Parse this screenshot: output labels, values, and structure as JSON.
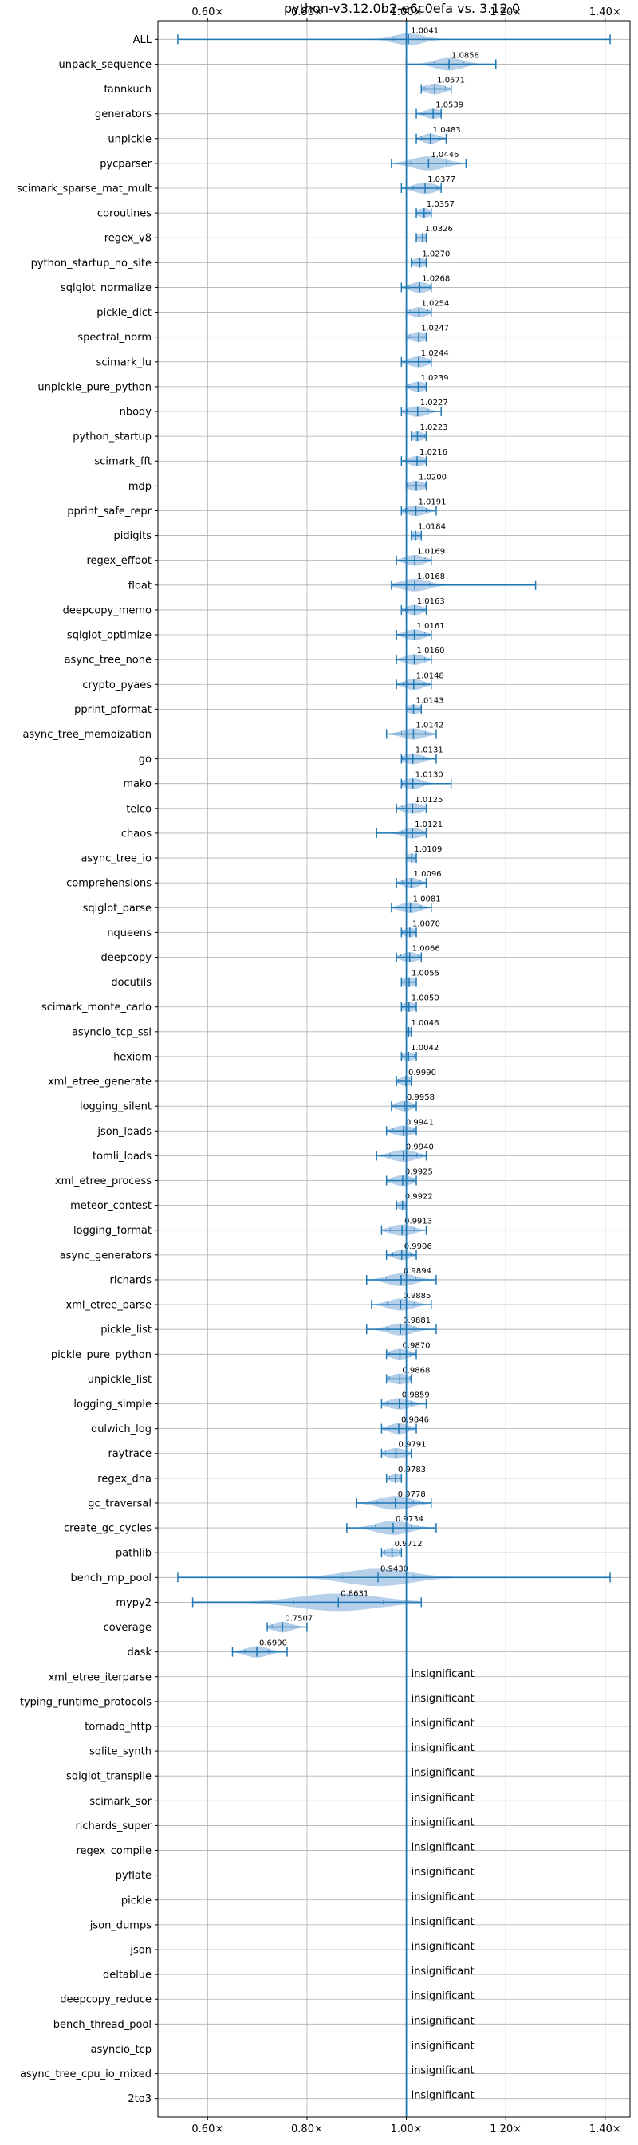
{
  "chart_data": {
    "type": "violin",
    "title": "python-v3.12.0b2-e6c0efa vs. 3.12.0",
    "xlim": [
      0.5,
      1.45
    ],
    "x_ticks": [
      0.6,
      0.8,
      1.0,
      1.2,
      1.4
    ],
    "x_tick_labels": [
      "0.60×",
      "0.80×",
      "1.00×",
      "1.20×",
      "1.40×"
    ],
    "reference_line": 1.0,
    "grid": true,
    "colors": {
      "primary": "#1f77b4",
      "violin": "#a9c8e6",
      "grid": "#b0b0b0"
    },
    "insignificant_label": "insignificant",
    "benchmarks": [
      {
        "name": "ALL",
        "value": 1.0041,
        "label": "1.0041",
        "range": [
          0.54,
          1.41
        ],
        "spread": 0.05
      },
      {
        "name": "unpack_sequence",
        "value": 1.0858,
        "label": "1.0858",
        "range": [
          1.0,
          1.18
        ],
        "spread": 0.05
      },
      {
        "name": "fannkuch",
        "value": 1.0571,
        "label": "1.0571",
        "range": [
          1.03,
          1.09
        ],
        "spread": 0.035
      },
      {
        "name": "generators",
        "value": 1.0539,
        "label": "1.0539",
        "range": [
          1.02,
          1.07
        ],
        "spread": 0.03
      },
      {
        "name": "unpickle",
        "value": 1.0483,
        "label": "1.0483",
        "range": [
          1.02,
          1.08
        ],
        "spread": 0.03
      },
      {
        "name": "pycparser",
        "value": 1.0446,
        "label": "1.0446",
        "range": [
          0.97,
          1.12
        ],
        "spread": 0.06
      },
      {
        "name": "scimark_sparse_mat_mult",
        "value": 1.0377,
        "label": "1.0377",
        "range": [
          0.99,
          1.07
        ],
        "spread": 0.04
      },
      {
        "name": "coroutines",
        "value": 1.0357,
        "label": "1.0357",
        "range": [
          1.02,
          1.05
        ],
        "spread": 0.025
      },
      {
        "name": "regex_v8",
        "value": 1.0326,
        "label": "1.0326",
        "range": [
          1.02,
          1.04
        ],
        "spread": 0.02
      },
      {
        "name": "python_startup_no_site",
        "value": 1.027,
        "label": "1.0270",
        "range": [
          1.01,
          1.04
        ],
        "spread": 0.025
      },
      {
        "name": "sqlglot_normalize",
        "value": 1.0268,
        "label": "1.0268",
        "range": [
          0.99,
          1.05
        ],
        "spread": 0.035
      },
      {
        "name": "pickle_dict",
        "value": 1.0254,
        "label": "1.0254",
        "range": [
          1.0,
          1.05
        ],
        "spread": 0.03
      },
      {
        "name": "spectral_norm",
        "value": 1.0247,
        "label": "1.0247",
        "range": [
          1.0,
          1.04
        ],
        "spread": 0.03
      },
      {
        "name": "scimark_lu",
        "value": 1.0244,
        "label": "1.0244",
        "range": [
          0.99,
          1.05
        ],
        "spread": 0.035
      },
      {
        "name": "unpickle_pure_python",
        "value": 1.0239,
        "label": "1.0239",
        "range": [
          1.0,
          1.04
        ],
        "spread": 0.03
      },
      {
        "name": "nbody",
        "value": 1.0227,
        "label": "1.0227",
        "range": [
          0.99,
          1.07
        ],
        "spread": 0.035
      },
      {
        "name": "python_startup",
        "value": 1.0223,
        "label": "1.0223",
        "range": [
          1.01,
          1.04
        ],
        "spread": 0.025
      },
      {
        "name": "scimark_fft",
        "value": 1.0216,
        "label": "1.0216",
        "range": [
          0.99,
          1.04
        ],
        "spread": 0.03
      },
      {
        "name": "mdp",
        "value": 1.02,
        "label": "1.0200",
        "range": [
          1.0,
          1.04
        ],
        "spread": 0.03
      },
      {
        "name": "pprint_safe_repr",
        "value": 1.0191,
        "label": "1.0191",
        "range": [
          0.99,
          1.06
        ],
        "spread": 0.035
      },
      {
        "name": "pidigits",
        "value": 1.0184,
        "label": "1.0184",
        "range": [
          1.01,
          1.03
        ],
        "spread": 0.02
      },
      {
        "name": "regex_effbot",
        "value": 1.0169,
        "label": "1.0169",
        "range": [
          0.98,
          1.05
        ],
        "spread": 0.035
      },
      {
        "name": "float",
        "value": 1.0168,
        "label": "1.0168",
        "range": [
          0.97,
          1.26
        ],
        "spread": 0.05
      },
      {
        "name": "deepcopy_memo",
        "value": 1.0163,
        "label": "1.0163",
        "range": [
          0.99,
          1.04
        ],
        "spread": 0.03
      },
      {
        "name": "sqlglot_optimize",
        "value": 1.0161,
        "label": "1.0161",
        "range": [
          0.98,
          1.05
        ],
        "spread": 0.035
      },
      {
        "name": "async_tree_none",
        "value": 1.016,
        "label": "1.0160",
        "range": [
          0.98,
          1.05
        ],
        "spread": 0.035
      },
      {
        "name": "crypto_pyaes",
        "value": 1.0148,
        "label": "1.0148",
        "range": [
          0.98,
          1.05
        ],
        "spread": 0.035
      },
      {
        "name": "pprint_pformat",
        "value": 1.0143,
        "label": "1.0143",
        "range": [
          1.0,
          1.03
        ],
        "spread": 0.025
      },
      {
        "name": "async_tree_memoization",
        "value": 1.0142,
        "label": "1.0142",
        "range": [
          0.96,
          1.06
        ],
        "spread": 0.04
      },
      {
        "name": "go",
        "value": 1.0131,
        "label": "1.0131",
        "range": [
          0.99,
          1.06
        ],
        "spread": 0.035
      },
      {
        "name": "mako",
        "value": 1.013,
        "label": "1.0130",
        "range": [
          0.99,
          1.09
        ],
        "spread": 0.035
      },
      {
        "name": "telco",
        "value": 1.0125,
        "label": "1.0125",
        "range": [
          0.98,
          1.04
        ],
        "spread": 0.035
      },
      {
        "name": "chaos",
        "value": 1.0121,
        "label": "1.0121",
        "range": [
          0.94,
          1.04
        ],
        "spread": 0.035
      },
      {
        "name": "async_tree_io",
        "value": 1.0109,
        "label": "1.0109",
        "range": [
          1.0,
          1.02
        ],
        "spread": 0.02
      },
      {
        "name": "comprehensions",
        "value": 1.0096,
        "label": "1.0096",
        "range": [
          0.98,
          1.04
        ],
        "spread": 0.03
      },
      {
        "name": "sqlglot_parse",
        "value": 1.0081,
        "label": "1.0081",
        "range": [
          0.97,
          1.05
        ],
        "spread": 0.035
      },
      {
        "name": "nqueens",
        "value": 1.007,
        "label": "1.0070",
        "range": [
          0.99,
          1.02
        ],
        "spread": 0.025
      },
      {
        "name": "deepcopy",
        "value": 1.0066,
        "label": "1.0066",
        "range": [
          0.98,
          1.03
        ],
        "spread": 0.03
      },
      {
        "name": "docutils",
        "value": 1.0055,
        "label": "1.0055",
        "range": [
          0.99,
          1.02
        ],
        "spread": 0.025
      },
      {
        "name": "scimark_monte_carlo",
        "value": 1.005,
        "label": "1.0050",
        "range": [
          0.99,
          1.02
        ],
        "spread": 0.025
      },
      {
        "name": "asyncio_tcp_ssl",
        "value": 1.0046,
        "label": "1.0046",
        "range": [
          1.0,
          1.01
        ],
        "spread": 0.015
      },
      {
        "name": "hexiom",
        "value": 1.0042,
        "label": "1.0042",
        "range": [
          0.99,
          1.02
        ],
        "spread": 0.02
      },
      {
        "name": "xml_etree_generate",
        "value": 0.999,
        "label": "0.9990",
        "range": [
          0.98,
          1.01
        ],
        "spread": 0.025
      },
      {
        "name": "logging_silent",
        "value": 0.9958,
        "label": "0.9958",
        "range": [
          0.97,
          1.02
        ],
        "spread": 0.03
      },
      {
        "name": "json_loads",
        "value": 0.9941,
        "label": "0.9941",
        "range": [
          0.96,
          1.02
        ],
        "spread": 0.035
      },
      {
        "name": "tomli_loads",
        "value": 0.994,
        "label": "0.9940",
        "range": [
          0.94,
          1.04
        ],
        "spread": 0.045
      },
      {
        "name": "xml_etree_process",
        "value": 0.9925,
        "label": "0.9925",
        "range": [
          0.96,
          1.02
        ],
        "spread": 0.035
      },
      {
        "name": "meteor_contest",
        "value": 0.9922,
        "label": "0.9922",
        "range": [
          0.98,
          1.0
        ],
        "spread": 0.02
      },
      {
        "name": "logging_format",
        "value": 0.9913,
        "label": "0.9913",
        "range": [
          0.95,
          1.04
        ],
        "spread": 0.04
      },
      {
        "name": "async_generators",
        "value": 0.9906,
        "label": "0.9906",
        "range": [
          0.96,
          1.02
        ],
        "spread": 0.03
      },
      {
        "name": "richards",
        "value": 0.9894,
        "label": "0.9894",
        "range": [
          0.92,
          1.06
        ],
        "spread": 0.05
      },
      {
        "name": "xml_etree_parse",
        "value": 0.9885,
        "label": "0.9885",
        "range": [
          0.93,
          1.05
        ],
        "spread": 0.045
      },
      {
        "name": "pickle_list",
        "value": 0.9881,
        "label": "0.9881",
        "range": [
          0.92,
          1.06
        ],
        "spread": 0.045
      },
      {
        "name": "pickle_pure_python",
        "value": 0.987,
        "label": "0.9870",
        "range": [
          0.96,
          1.02
        ],
        "spread": 0.035
      },
      {
        "name": "unpickle_list",
        "value": 0.9868,
        "label": "0.9868",
        "range": [
          0.96,
          1.01
        ],
        "spread": 0.035
      },
      {
        "name": "logging_simple",
        "value": 0.9859,
        "label": "0.9859",
        "range": [
          0.95,
          1.04
        ],
        "spread": 0.04
      },
      {
        "name": "dulwich_log",
        "value": 0.9846,
        "label": "0.9846",
        "range": [
          0.95,
          1.02
        ],
        "spread": 0.035
      },
      {
        "name": "raytrace",
        "value": 0.9791,
        "label": "0.9791",
        "range": [
          0.95,
          1.01
        ],
        "spread": 0.035
      },
      {
        "name": "regex_dna",
        "value": 0.9783,
        "label": "0.9783",
        "range": [
          0.96,
          0.99
        ],
        "spread": 0.02
      },
      {
        "name": "gc_traversal",
        "value": 0.9778,
        "label": "0.9778",
        "range": [
          0.9,
          1.05
        ],
        "spread": 0.06
      },
      {
        "name": "create_gc_cycles",
        "value": 0.9734,
        "label": "0.9734",
        "range": [
          0.88,
          1.06
        ],
        "spread": 0.06
      },
      {
        "name": "pathlib",
        "value": 0.9712,
        "label": "0.9712",
        "range": [
          0.95,
          0.99
        ],
        "spread": 0.025
      },
      {
        "name": "bench_mp_pool",
        "value": 0.943,
        "label": "0.9430",
        "range": [
          0.54,
          1.41
        ],
        "spread": 0.12
      },
      {
        "name": "mypy2",
        "value": 0.8631,
        "label": "0.8631",
        "range": [
          0.57,
          1.03
        ],
        "spread": 0.15
      },
      {
        "name": "coverage",
        "value": 0.7507,
        "label": "0.7507",
        "range": [
          0.72,
          0.8
        ],
        "spread": 0.035
      },
      {
        "name": "dask",
        "value": 0.699,
        "label": "0.6990",
        "range": [
          0.65,
          0.76
        ],
        "spread": 0.04
      },
      {
        "name": "xml_etree_iterparse",
        "insignificant": true
      },
      {
        "name": "typing_runtime_protocols",
        "insignificant": true
      },
      {
        "name": "tornado_http",
        "insignificant": true
      },
      {
        "name": "sqlite_synth",
        "insignificant": true
      },
      {
        "name": "sqlglot_transpile",
        "insignificant": true
      },
      {
        "name": "scimark_sor",
        "insignificant": true
      },
      {
        "name": "richards_super",
        "insignificant": true
      },
      {
        "name": "regex_compile",
        "insignificant": true
      },
      {
        "name": "pyflate",
        "insignificant": true
      },
      {
        "name": "pickle",
        "insignificant": true
      },
      {
        "name": "json_dumps",
        "insignificant": true
      },
      {
        "name": "json",
        "insignificant": true
      },
      {
        "name": "deltablue",
        "insignificant": true
      },
      {
        "name": "deepcopy_reduce",
        "insignificant": true
      },
      {
        "name": "bench_thread_pool",
        "insignificant": true
      },
      {
        "name": "asyncio_tcp",
        "insignificant": true
      },
      {
        "name": "async_tree_cpu_io_mixed",
        "insignificant": true
      },
      {
        "name": "2to3",
        "insignificant": true
      }
    ]
  }
}
